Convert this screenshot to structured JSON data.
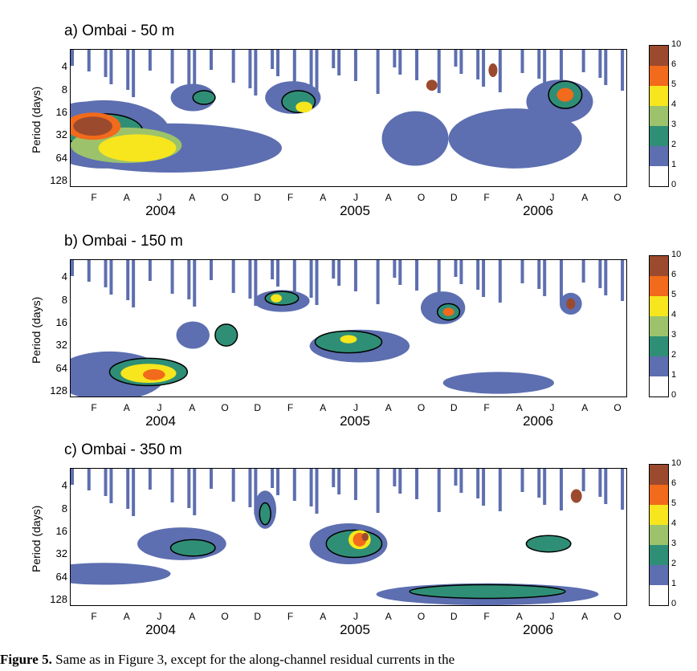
{
  "chart_data": [
    {
      "type": "heatmap",
      "title": "a) Ombai - 50 m",
      "ylabel": "Period (days)",
      "y_ticks": [
        "4",
        "8",
        "16",
        "32",
        "64",
        "128"
      ],
      "x_month_ticks": [
        "F",
        "A",
        "J",
        "A",
        "O",
        "D",
        "F",
        "A",
        "J",
        "A",
        "O",
        "D",
        "F",
        "A",
        "J",
        "A",
        "O"
      ],
      "x_year_labels": [
        "2004",
        "2005",
        "2006"
      ],
      "colorbar_ticks": [
        "10",
        "6",
        "5",
        "4",
        "3",
        "2",
        "1",
        "0"
      ],
      "colorbar_colors": [
        "#9b4a2e",
        "#f26a1b",
        "#f7e61d",
        "#9cc36b",
        "#2f8f76",
        "#5d6fb0",
        "#ffffff"
      ],
      "grid": false
    },
    {
      "type": "heatmap",
      "title": "b) Ombai - 150 m",
      "ylabel": "Period (days)",
      "y_ticks": [
        "4",
        "8",
        "16",
        "32",
        "64",
        "128"
      ],
      "x_month_ticks": [
        "F",
        "A",
        "J",
        "A",
        "O",
        "D",
        "F",
        "A",
        "J",
        "A",
        "O",
        "D",
        "F",
        "A",
        "J",
        "A",
        "O"
      ],
      "x_year_labels": [
        "2004",
        "2005",
        "2006"
      ],
      "colorbar_ticks": [
        "10",
        "6",
        "5",
        "4",
        "3",
        "2",
        "1",
        "0"
      ],
      "colorbar_colors": [
        "#9b4a2e",
        "#f26a1b",
        "#f7e61d",
        "#9cc36b",
        "#2f8f76",
        "#5d6fb0",
        "#ffffff"
      ],
      "grid": false
    },
    {
      "type": "heatmap",
      "title": "c) Ombai - 350 m",
      "ylabel": "Period (days)",
      "y_ticks": [
        "4",
        "8",
        "16",
        "32",
        "64",
        "128"
      ],
      "x_month_ticks": [
        "F",
        "A",
        "J",
        "A",
        "O",
        "D",
        "F",
        "A",
        "J",
        "A",
        "O",
        "D",
        "F",
        "A",
        "J",
        "A",
        "O"
      ],
      "x_year_labels": [
        "2004",
        "2005",
        "2006"
      ],
      "colorbar_ticks": [
        "10",
        "6",
        "5",
        "4",
        "3",
        "2",
        "1",
        "0"
      ],
      "colorbar_colors": [
        "#9b4a2e",
        "#f26a1b",
        "#f7e61d",
        "#9cc36b",
        "#2f8f76",
        "#5d6fb0",
        "#ffffff"
      ],
      "grid": false
    }
  ],
  "caption": {
    "label": "Figure 5.",
    "text": " Same as in Figure 3, except for the along-channel residual currents in the"
  }
}
